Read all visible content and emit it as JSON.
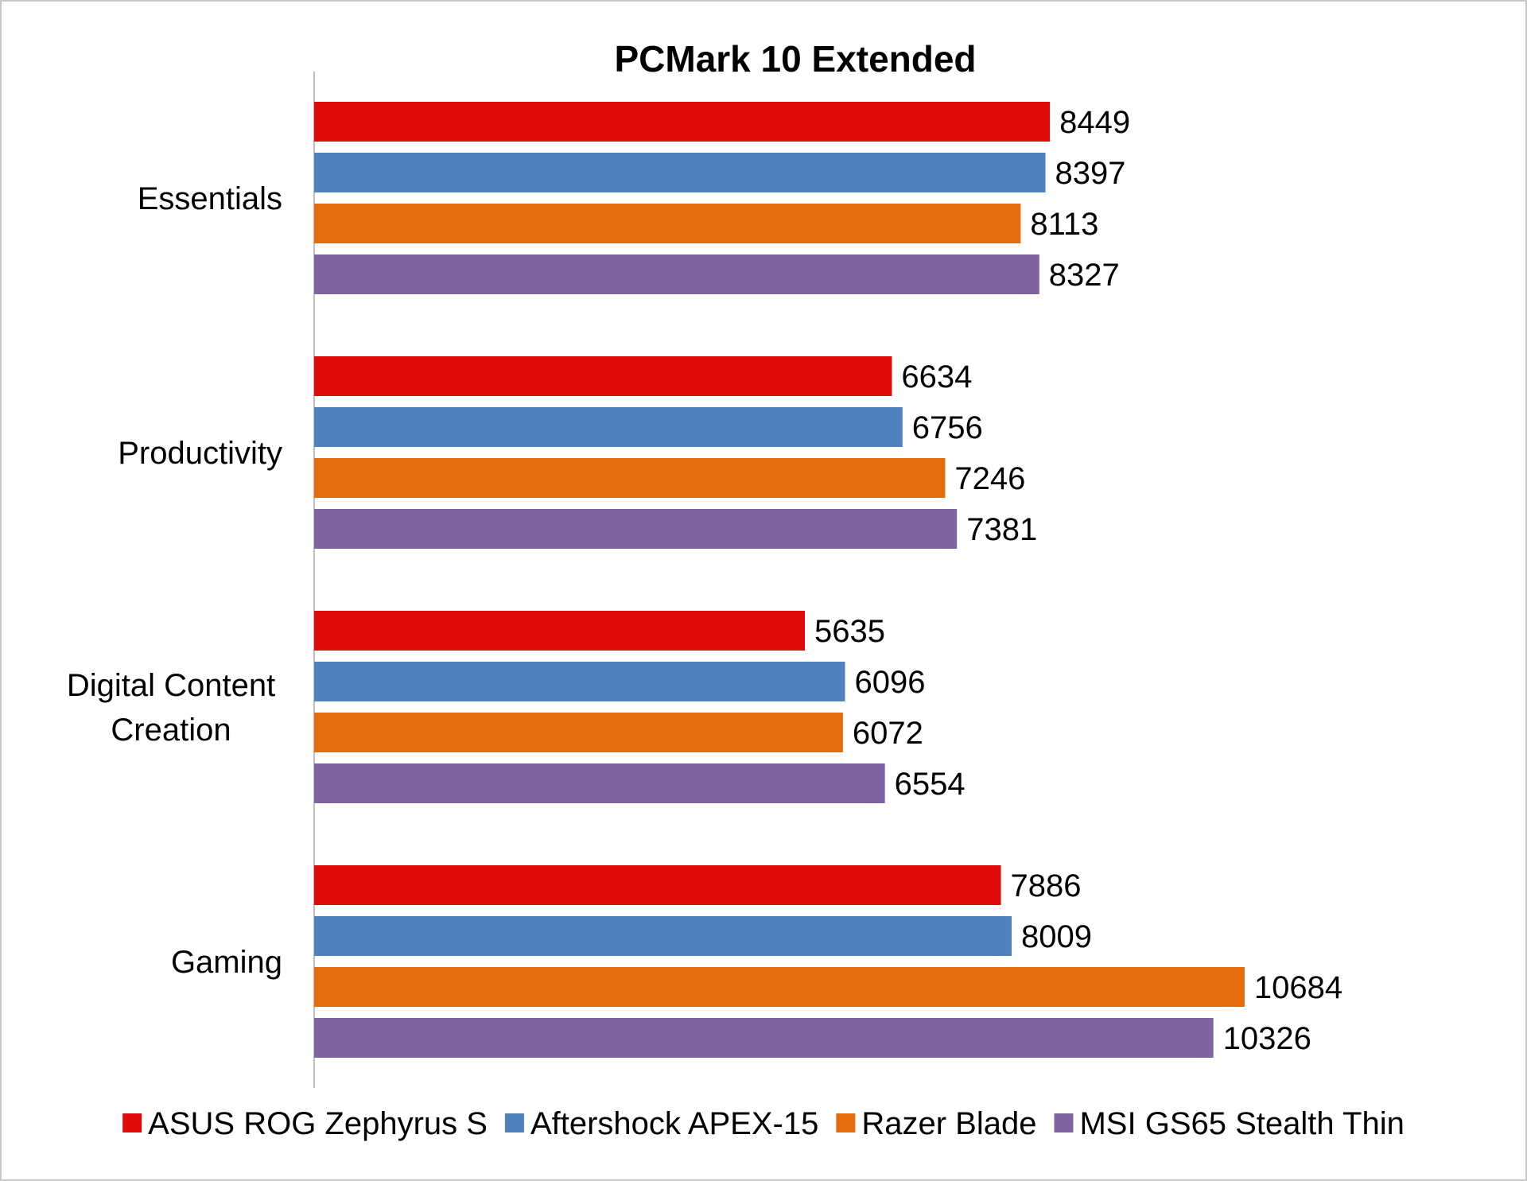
{
  "chart_data": {
    "type": "bar",
    "orientation": "horizontal",
    "title": "PCMark 10 Extended",
    "xlabel": "",
    "ylabel": "",
    "xlim": [
      0,
      11000
    ],
    "grid": false,
    "legend_position": "bottom",
    "categories": [
      {
        "lines": [
          "Essentials"
        ]
      },
      {
        "lines": [
          "Productivity"
        ]
      },
      {
        "lines": [
          "Digital Content",
          "Creation"
        ]
      },
      {
        "lines": [
          "Gaming"
        ]
      }
    ],
    "series": [
      {
        "name": "ASUS ROG Zephyrus S",
        "color": "#e00b0b",
        "values": [
          8449,
          6634,
          5635,
          7886
        ]
      },
      {
        "name": "Aftershock APEX-15",
        "color": "#4f81bd",
        "values": [
          8397,
          6756,
          6096,
          8009
        ]
      },
      {
        "name": "Razer Blade",
        "color": "#e46c0a",
        "values": [
          8113,
          7246,
          6072,
          10684
        ]
      },
      {
        "name": "MSI GS65 Stealth Thin",
        "color": "#8064a2",
        "values": [
          8327,
          7381,
          6554,
          10326
        ]
      }
    ]
  }
}
